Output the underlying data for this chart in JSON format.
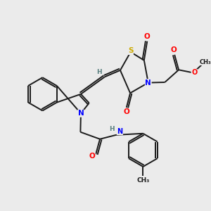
{
  "background_color": "#ebebeb",
  "atom_colors": {
    "C": "#1a1a1a",
    "N": "#0000ff",
    "O": "#ff0000",
    "S": "#ccaa00",
    "H": "#5a8080"
  },
  "bond_color": "#1a1a1a",
  "figsize": [
    3.0,
    3.0
  ],
  "dpi": 100
}
